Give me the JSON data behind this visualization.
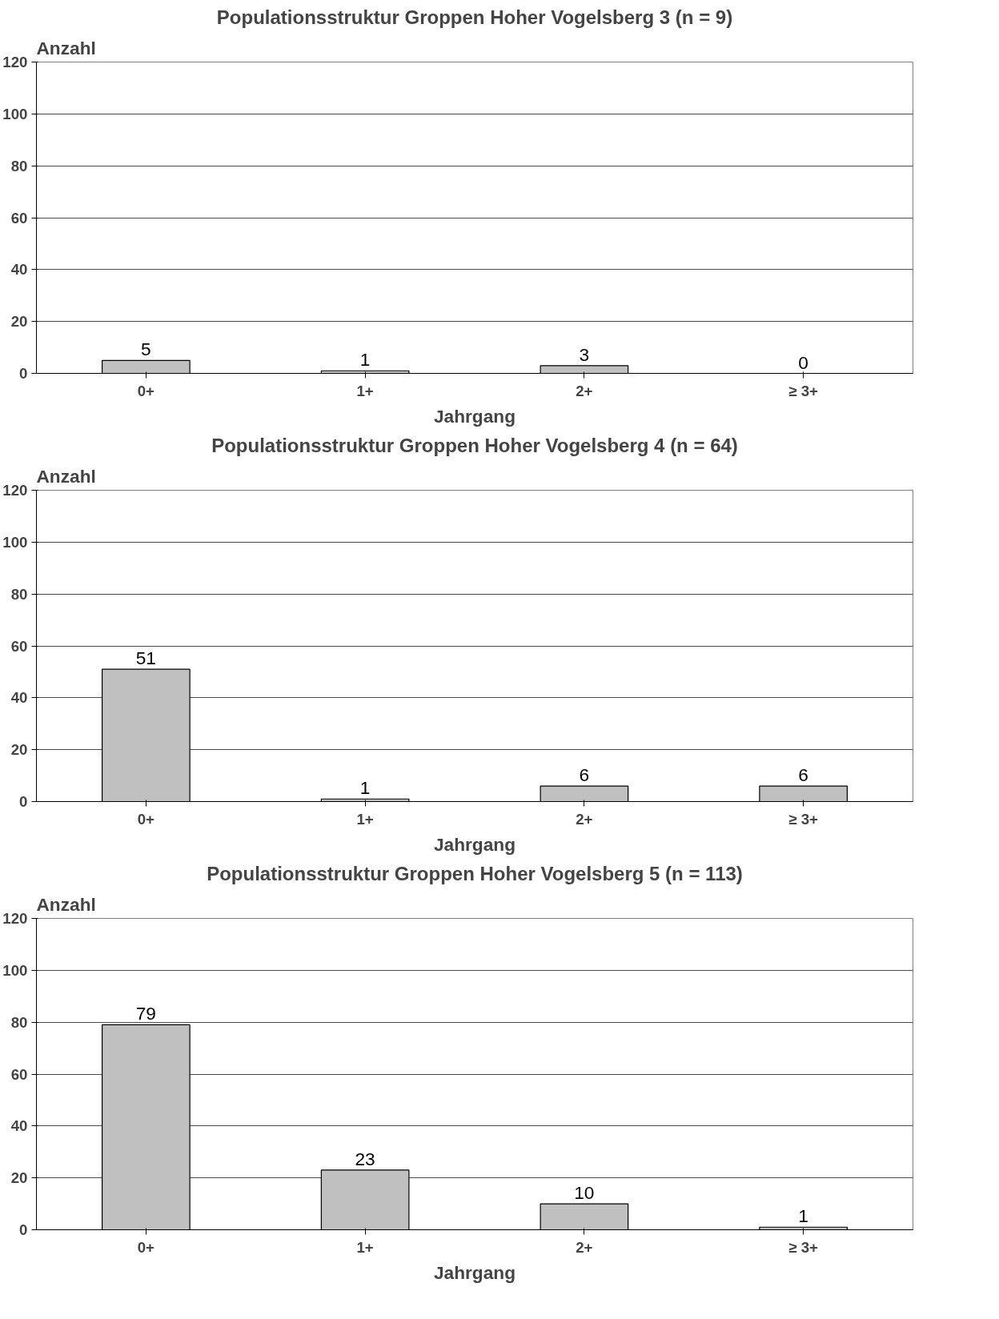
{
  "chart_data": [
    {
      "type": "bar",
      "title": "Populationsstruktur Groppen Hoher Vogelsberg 3 (n = 9)",
      "xlabel": "Jahrgang",
      "ylabel": "Anzahl",
      "categories": [
        "0+",
        "1+",
        "2+",
        "≥ 3+"
      ],
      "values": [
        5,
        1,
        3,
        0
      ],
      "color": "#c0c0c0",
      "ylim": [
        0,
        120
      ],
      "yticks": [
        0,
        20,
        40,
        60,
        80,
        100,
        120
      ],
      "grid": "y",
      "data_labels": true
    },
    {
      "type": "bar",
      "title": "Populationsstruktur Groppen Hoher Vogelsberg 4 (n = 64)",
      "xlabel": "Jahrgang",
      "ylabel": "Anzahl",
      "categories": [
        "0+",
        "1+",
        "2+",
        "≥ 3+"
      ],
      "values": [
        51,
        1,
        6,
        6
      ],
      "color": "#c0c0c0",
      "ylim": [
        0,
        120
      ],
      "yticks": [
        0,
        20,
        40,
        60,
        80,
        100,
        120
      ],
      "grid": "y",
      "data_labels": true
    },
    {
      "type": "bar",
      "title": "Populationsstruktur Groppen Hoher Vogelsberg 5 (n = 113)",
      "xlabel": "Jahrgang",
      "ylabel": "Anzahl",
      "categories": [
        "0+",
        "1+",
        "2+",
        "≥ 3+"
      ],
      "values": [
        79,
        23,
        10,
        1
      ],
      "color": "#c0c0c0",
      "ylim": [
        0,
        120
      ],
      "yticks": [
        0,
        20,
        40,
        60,
        80,
        100,
        120
      ],
      "grid": "y",
      "data_labels": true
    }
  ]
}
